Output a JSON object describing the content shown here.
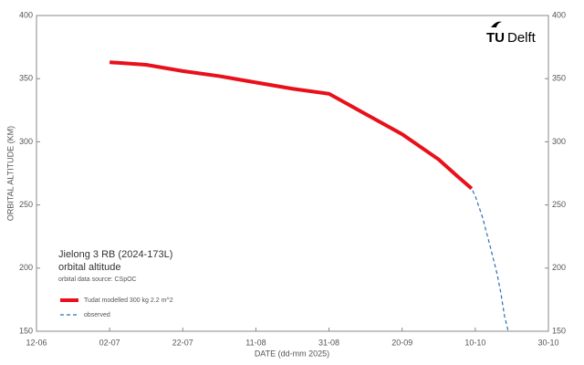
{
  "chart_data": {
    "type": "line",
    "title": "Jielong 3 RB  (2024-173L)",
    "subtitle": "orbital altitude",
    "source": "orbital data source:  CSpOC",
    "x_label": "DATE (dd-mm 2025)",
    "y_label": "ORBITAL ALTITUDE (KM)",
    "logo": {
      "bold": "TU",
      "text": "Delft"
    },
    "x": [
      "2025-07-02",
      "2025-07-12",
      "2025-07-22",
      "2025-08-01",
      "2025-08-11",
      "2025-08-21",
      "2025-08-31",
      "2025-09-10",
      "2025-09-20",
      "2025-09-30",
      "2025-10-05",
      "2025-10-09",
      "2025-10-10",
      "2025-10-12",
      "2025-10-14",
      "2025-10-16",
      "2025-10-17",
      "2025-10-18",
      "2025-10-19"
    ],
    "series": [
      {
        "name": "Tudat modelled  300 kg  2.2 m^2",
        "color": "#e8101a",
        "style": "solid",
        "values": [
          363,
          361,
          356,
          352,
          347,
          342,
          338,
          322,
          306,
          286,
          273,
          263,
          null,
          null,
          null,
          null,
          null,
          null,
          null
        ]
      },
      {
        "name": "observed",
        "color": "#2a6ebb",
        "style": "dashed",
        "values": [
          363,
          361,
          356,
          352,
          347,
          342,
          338,
          322,
          306,
          286,
          273,
          263,
          257,
          240,
          218,
          195,
          180,
          162,
          150
        ]
      }
    ],
    "xlim": [
      "2025-06-12",
      "2025-10-30"
    ],
    "xticks": [
      {
        "value": "2025-06-12",
        "label": "12-06"
      },
      {
        "value": "2025-07-02",
        "label": "02-07"
      },
      {
        "value": "2025-07-22",
        "label": "22-07"
      },
      {
        "value": "2025-08-11",
        "label": "11-08"
      },
      {
        "value": "2025-08-31",
        "label": "31-08"
      },
      {
        "value": "2025-09-20",
        "label": "20-09"
      },
      {
        "value": "2025-10-10",
        "label": "10-10"
      },
      {
        "value": "2025-10-30",
        "label": "30-10"
      }
    ],
    "ylim": [
      150,
      400
    ],
    "yticks": [
      150,
      200,
      250,
      300,
      350,
      400
    ],
    "grid": false
  }
}
